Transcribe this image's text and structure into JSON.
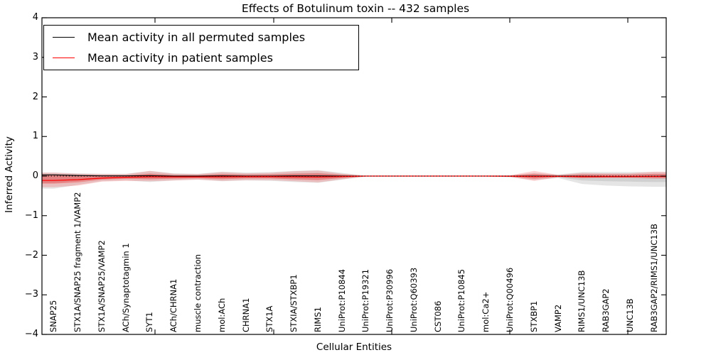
{
  "title": "Effects of Botulinum toxin -- 432 samples",
  "legend": {
    "items": [
      {
        "label": "Mean activity in all permuted samples",
        "color": "#000000"
      },
      {
        "label": "Mean activity in patient samples",
        "color": "#ff0000"
      }
    ]
  },
  "axes": {
    "ylabel": "Inferred Activity",
    "xlabel": "Cellular Entities",
    "ytick_labels": [
      "4",
      "3",
      "2",
      "1",
      "0",
      "−1",
      "−2",
      "−3",
      "−4"
    ]
  },
  "chart_data": {
    "type": "line",
    "title": "Effects of Botulinum toxin -- 432 samples",
    "xlabel": "Cellular Entities",
    "ylabel": "Inferred Activity",
    "ylim": [
      -4,
      4
    ],
    "grid": false,
    "legend_position": "upper left",
    "reference_line": {
      "y": 0,
      "style": "dotted",
      "color": "#000000"
    },
    "categories": [
      "SNAP25",
      "STX1A/SNAP25 fragment 1/VAMP2",
      "STX1A/SNAP25/VAMP2",
      "ACh/Synaptotagmin 1",
      "SYT1",
      "ACh/CHRNA1",
      "muscle contraction",
      "mol:ACh",
      "CHRNA1",
      "STX1A",
      "STXIA/STXBP1",
      "RIMS1",
      "UniProt:P10844",
      "UniProt:P19321",
      "UniProt:P30996",
      "UniProt:Q60393",
      "CST086",
      "UniProt:P10845",
      "mol:Ca2+",
      "UniProt:Q00496",
      "STXBP1",
      "VAMP2",
      "RIMS1/UNC13B",
      "RAB3GAP2",
      "UNC13B",
      "RAB3GAP2/RIMS1/UNC13B"
    ],
    "series": [
      {
        "name": "Mean activity in all permuted samples",
        "color": "#000000",
        "style": "solid",
        "values": [
          0.03,
          0.015,
          0.005,
          0.005,
          0.01,
          0.0,
          0.0,
          0.005,
          0.0,
          0.0,
          0.005,
          0.005,
          0.0,
          0.0,
          0.0,
          0.0,
          0.0,
          0.0,
          0.0,
          0.0,
          0.0,
          0.0,
          -0.005,
          -0.01,
          -0.01,
          -0.005
        ]
      },
      {
        "name": "Mean activity in patient samples",
        "color": "#ff0000",
        "style": "solid",
        "values": [
          -0.11,
          -0.09,
          -0.05,
          -0.03,
          -0.02,
          -0.02,
          -0.02,
          -0.02,
          -0.015,
          -0.015,
          -0.02,
          -0.025,
          -0.01,
          0.0,
          0.0,
          0.0,
          0.0,
          0.0,
          0.0,
          -0.003,
          -0.01,
          -0.008,
          -0.015,
          -0.015,
          -0.015,
          -0.01
        ]
      }
    ],
    "bands": [
      {
        "name": "permuted-samples-range-outer",
        "color": "#8a8a8a",
        "opacity": 0.22,
        "upper": [
          0.09,
          0.07,
          0.06,
          0.06,
          0.13,
          0.07,
          0.06,
          0.11,
          0.09,
          0.1,
          0.13,
          0.15,
          0.08,
          0.01,
          0.01,
          0.01,
          0.01,
          0.01,
          0.01,
          0.02,
          0.08,
          0.04,
          0.1,
          0.1,
          0.1,
          0.1
        ],
        "lower": [
          -0.32,
          -0.22,
          -0.13,
          -0.11,
          -0.15,
          -0.11,
          -0.09,
          -0.13,
          -0.11,
          -0.12,
          -0.15,
          -0.17,
          -0.09,
          -0.01,
          -0.01,
          -0.01,
          -0.01,
          -0.01,
          -0.01,
          -0.03,
          -0.1,
          -0.05,
          -0.2,
          -0.24,
          -0.26,
          -0.27
        ]
      },
      {
        "name": "permuted-samples-range-inner",
        "color": "#8a8a8a",
        "opacity": 0.22,
        "upper": [
          0.05,
          0.04,
          0.03,
          0.03,
          0.07,
          0.04,
          0.03,
          0.06,
          0.05,
          0.05,
          0.07,
          0.08,
          0.04,
          0.005,
          0.005,
          0.005,
          0.005,
          0.005,
          0.005,
          0.01,
          0.04,
          0.02,
          0.05,
          0.05,
          0.05,
          0.05
        ],
        "lower": [
          -0.18,
          -0.13,
          -0.08,
          -0.06,
          -0.08,
          -0.06,
          -0.05,
          -0.07,
          -0.06,
          -0.06,
          -0.08,
          -0.09,
          -0.05,
          -0.005,
          -0.005,
          -0.005,
          -0.005,
          -0.005,
          -0.005,
          -0.015,
          -0.05,
          -0.03,
          -0.11,
          -0.13,
          -0.14,
          -0.15
        ]
      },
      {
        "name": "patient-samples-range-outer",
        "color": "#ff0000",
        "opacity": 0.17,
        "upper": [
          0.085,
          0.06,
          0.05,
          0.05,
          0.13,
          0.06,
          0.05,
          0.1,
          0.07,
          0.08,
          0.12,
          0.14,
          0.06,
          0.01,
          0.01,
          0.01,
          0.01,
          0.01,
          0.01,
          0.02,
          0.13,
          0.03,
          0.08,
          0.07,
          0.07,
          0.11
        ],
        "lower": [
          -0.28,
          -0.24,
          -0.14,
          -0.12,
          -0.13,
          -0.11,
          -0.09,
          -0.12,
          -0.1,
          -0.1,
          -0.13,
          -0.16,
          -0.08,
          -0.01,
          -0.01,
          -0.01,
          -0.01,
          -0.01,
          -0.01,
          -0.02,
          -0.12,
          -0.03,
          -0.06,
          -0.05,
          -0.05,
          -0.07
        ]
      },
      {
        "name": "patient-samples-range-inner",
        "color": "#ff0000",
        "opacity": 0.25,
        "upper": [
          0.025,
          0.01,
          0.01,
          0.01,
          0.06,
          0.02,
          0.02,
          0.05,
          0.03,
          0.04,
          0.06,
          0.07,
          0.03,
          0.005,
          0.005,
          0.005,
          0.005,
          0.005,
          0.005,
          0.01,
          0.06,
          0.015,
          0.04,
          0.035,
          0.035,
          0.06
        ],
        "lower": [
          -0.19,
          -0.16,
          -0.09,
          -0.07,
          -0.08,
          -0.07,
          -0.06,
          -0.08,
          -0.06,
          -0.06,
          -0.08,
          -0.1,
          -0.05,
          -0.005,
          -0.005,
          -0.005,
          -0.005,
          -0.005,
          -0.005,
          -0.012,
          -0.07,
          -0.02,
          -0.04,
          -0.03,
          -0.03,
          -0.045
        ]
      }
    ]
  }
}
